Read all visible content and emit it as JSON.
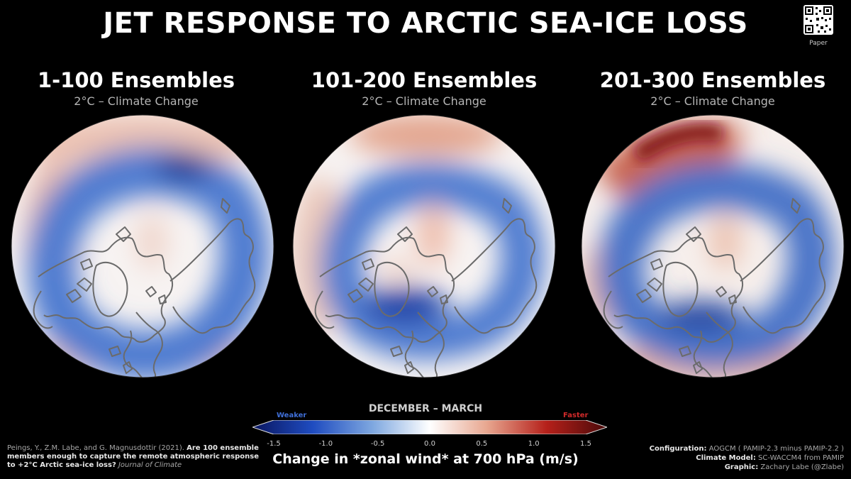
{
  "title": "JET RESPONSE TO ARCTIC SEA-ICE LOSS",
  "qr": {
    "label": "Paper",
    "icon": "qr-code-icon"
  },
  "panels": [
    {
      "title": "1-100 Ensembles",
      "subtitle": "2°C – Climate Change"
    },
    {
      "title": "101-200 Ensembles",
      "subtitle": "2°C – Climate Change"
    },
    {
      "title": "201-300 Ensembles",
      "subtitle": "2°C – Climate Change"
    }
  ],
  "colorbar": {
    "season": "DECEMBER – MARCH",
    "weaker": "Weaker",
    "faster": "Faster",
    "ticks": [
      "-1.5",
      "-1.0",
      "-0.5",
      "0.0",
      "0.5",
      "1.0",
      "1.5"
    ],
    "range": [
      -1.5,
      1.5
    ],
    "label": "Change in *zonal wind* at 700 hPa (m/s)",
    "colors": [
      "#0a1660",
      "#1f4cc0",
      "#7fa8e0",
      "#ffffff",
      "#e8a790",
      "#b5201a",
      "#4a0a0a"
    ]
  },
  "citation": {
    "authors": "Peings, Y., Z.M. Labe, and G. Magnusdottir (2021).",
    "title": "Are 100 ensemble members enough to capture the remote atmospheric response to +2°C Arctic sea-ice loss?",
    "journal": "Journal of Climate"
  },
  "credits": {
    "config_label": "Configuration:",
    "config_value": "AOGCM ( PAMIP-2.3 minus PAMIP-2.2 )",
    "model_label": "Climate Model:",
    "model_value": "SC-WACCM4 from PAMIP",
    "graphic_label": "Graphic:",
    "graphic_value": "Zachary Labe (@Zlabe)"
  }
}
